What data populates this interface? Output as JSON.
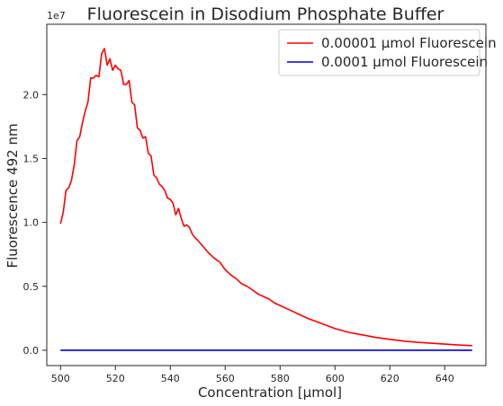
{
  "chart_data": {
    "type": "line",
    "title": "Fluorescein in Disodium Phosphate Buffer",
    "xlabel": "Concentration [μmol]",
    "ylabel": "Fluorescence 492 nm",
    "y_offset_label": "1e7",
    "xlim": [
      495,
      655
    ],
    "ylim": [
      -0.12,
      2.55
    ],
    "x_ticks": [
      500,
      520,
      540,
      560,
      580,
      600,
      620,
      640
    ],
    "y_ticks": [
      0.0,
      0.5,
      1.0,
      1.5,
      2.0
    ],
    "y_tick_labels": [
      "0.0",
      "0.5",
      "1.0",
      "1.5",
      "2.0"
    ],
    "grid": false,
    "legend_position": "top-right",
    "series": [
      {
        "name": "0.00001 μmol Fluorescein",
        "color": "#ff0000",
        "x": [
          500,
          501,
          502,
          503,
          504,
          505,
          506,
          507,
          508,
          509,
          510,
          511,
          512,
          513,
          514,
          515,
          516,
          517,
          518,
          519,
          520,
          521,
          522,
          523,
          524,
          525,
          526,
          527,
          528,
          529,
          530,
          531,
          532,
          533,
          534,
          535,
          536,
          537,
          538,
          539,
          540,
          541,
          542,
          543,
          544,
          545,
          546,
          547,
          548,
          549,
          550,
          552,
          554,
          556,
          558,
          560,
          562,
          564,
          566,
          568,
          570,
          572,
          574,
          576,
          578,
          580,
          582,
          584,
          586,
          588,
          590,
          595,
          600,
          605,
          610,
          615,
          620,
          625,
          630,
          635,
          640,
          645,
          650
        ],
        "y": [
          0.99,
          1.08,
          1.25,
          1.27,
          1.33,
          1.45,
          1.64,
          1.67,
          1.78,
          1.87,
          1.94,
          2.13,
          2.13,
          2.15,
          2.14,
          2.32,
          2.36,
          2.23,
          2.28,
          2.19,
          2.23,
          2.2,
          2.19,
          2.08,
          2.08,
          2.11,
          1.94,
          1.92,
          1.74,
          1.72,
          1.66,
          1.67,
          1.54,
          1.52,
          1.37,
          1.35,
          1.3,
          1.28,
          1.25,
          1.19,
          1.18,
          1.15,
          1.06,
          1.11,
          1.03,
          0.97,
          0.98,
          0.96,
          0.91,
          0.88,
          0.86,
          0.81,
          0.76,
          0.72,
          0.69,
          0.63,
          0.59,
          0.56,
          0.52,
          0.5,
          0.47,
          0.44,
          0.42,
          0.4,
          0.37,
          0.35,
          0.33,
          0.31,
          0.29,
          0.27,
          0.25,
          0.21,
          0.17,
          0.14,
          0.12,
          0.1,
          0.085,
          0.072,
          0.062,
          0.055,
          0.048,
          0.041,
          0.036
        ]
      },
      {
        "name": "0.0001 μmol Fluorescein",
        "color": "#0000cc",
        "x": [
          500,
          650
        ],
        "y": [
          0.0,
          0.0
        ]
      }
    ]
  }
}
